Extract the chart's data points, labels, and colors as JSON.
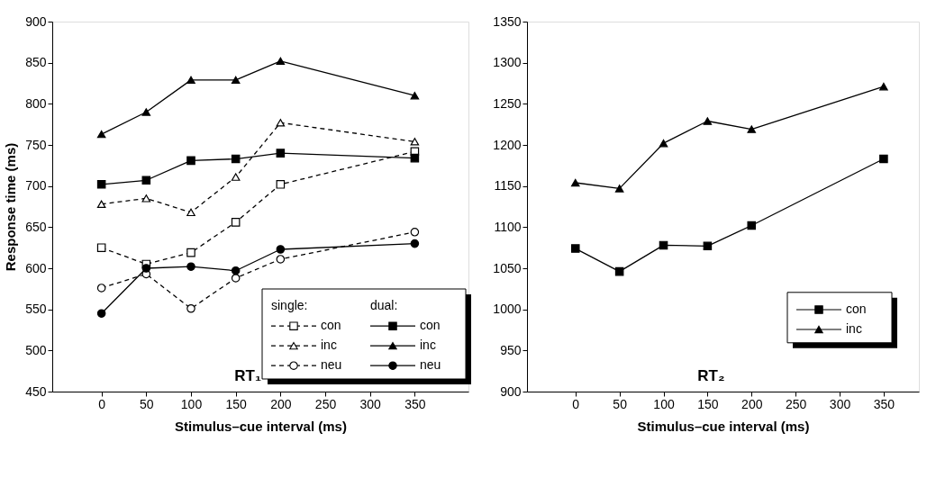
{
  "chart_data": [
    {
      "type": "line",
      "xlabel": "Stimulus–cue interval (ms)",
      "ylabel": "Response time (ms)",
      "x": [
        0,
        50,
        100,
        150,
        200,
        350
      ],
      "xlim": [
        -55,
        410
      ],
      "xticks": [
        0,
        50,
        100,
        150,
        200,
        250,
        300,
        350
      ],
      "ylim": [
        450,
        900
      ],
      "yticks": [
        450,
        500,
        550,
        600,
        650,
        700,
        750,
        800,
        850,
        900
      ],
      "grid": false,
      "legend": "bottom right",
      "annotations": [
        "RT₁",
        "single:",
        "dual:"
      ],
      "series": [
        {
          "name": "con",
          "color": "#000000",
          "marker": "square",
          "line_style": "dashed",
          "values": [
            625,
            605,
            619,
            656,
            702,
            742
          ]
        },
        {
          "name": "inc",
          "color": "#000000",
          "marker": "triangle",
          "line_style": "dashed",
          "values": [
            678,
            685,
            668,
            711,
            777,
            754
          ]
        },
        {
          "name": "neu",
          "color": "#000000",
          "marker": "circle",
          "line_style": "dashed",
          "values": [
            576,
            593,
            551,
            588,
            611,
            644
          ]
        },
        {
          "name": "con",
          "color": "#000000",
          "marker": "square",
          "line_style": "solid",
          "values": [
            702,
            707,
            731,
            733,
            740,
            734
          ]
        },
        {
          "name": "inc",
          "color": "#000000",
          "marker": "triangle",
          "line_style": "solid",
          "values": [
            763,
            790,
            829,
            829,
            852,
            810
          ]
        },
        {
          "name": "neu",
          "color": "#000000",
          "marker": "circle",
          "line_style": "solid",
          "values": [
            545,
            600,
            602,
            597,
            623,
            630
          ]
        }
      ]
    },
    {
      "type": "line",
      "xlabel": "Stimulus–cue interval (ms)",
      "x": [
        0,
        50,
        100,
        150,
        200,
        350
      ],
      "xlim": [
        -55,
        390
      ],
      "xticks": [
        0,
        50,
        100,
        150,
        200,
        250,
        300,
        350
      ],
      "ylim": [
        900,
        1350
      ],
      "yticks": [
        900,
        950,
        1000,
        1050,
        1100,
        1150,
        1200,
        1250,
        1300,
        1350
      ],
      "grid": false,
      "legend": "right",
      "annotations": [
        "RT₂"
      ],
      "series": [
        {
          "name": "con",
          "color": "#000000",
          "marker": "square",
          "line_style": "solid",
          "values": [
            1074,
            1046,
            1078,
            1077,
            1102,
            1183
          ]
        },
        {
          "name": "inc",
          "color": "#000000",
          "marker": "triangle",
          "line_style": "solid",
          "values": [
            1154,
            1147,
            1202,
            1229,
            1219,
            1271
          ]
        }
      ]
    }
  ]
}
